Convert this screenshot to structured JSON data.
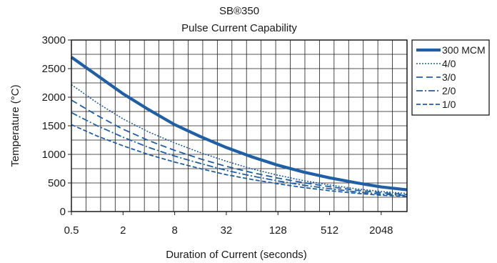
{
  "chart_data": {
    "type": "line",
    "title": "SB®350",
    "subtitle": "Pulse Current Capability",
    "xlabel": "Duration of Current (seconds)",
    "ylabel": "Temperature (°C)",
    "x_scale": "log2",
    "x_ticks": [
      0.5,
      2,
      8,
      32,
      128,
      512,
      2048
    ],
    "xlim": [
      0.5,
      4096
    ],
    "ylim": [
      0,
      3000
    ],
    "y_ticks": [
      0,
      500,
      1000,
      1500,
      2000,
      2500,
      3000
    ],
    "grid": true,
    "legend_position": "right",
    "color": "#1f5fa6",
    "series": [
      {
        "name": "300 MCM",
        "style": "thick",
        "x": [
          0.5,
          1,
          2,
          4,
          8,
          16,
          32,
          64,
          128,
          256,
          512,
          1024,
          2048,
          4096
        ],
        "y": [
          2700,
          2380,
          2060,
          1780,
          1520,
          1310,
          1120,
          955,
          810,
          690,
          590,
          505,
          430,
          380
        ]
      },
      {
        "name": "4/0",
        "style": "dotted",
        "x": [
          0.5,
          1,
          2,
          4,
          8,
          16,
          32,
          64,
          128,
          256,
          512,
          1024,
          2048,
          4096
        ],
        "y": [
          2220,
          1900,
          1620,
          1390,
          1200,
          1030,
          880,
          745,
          635,
          540,
          465,
          400,
          350,
          315
        ]
      },
      {
        "name": "3/0",
        "style": "dashed",
        "x": [
          0.5,
          1,
          2,
          4,
          8,
          16,
          32,
          64,
          128,
          256,
          512,
          1024,
          2048,
          4096
        ],
        "y": [
          1950,
          1680,
          1440,
          1240,
          1070,
          920,
          790,
          680,
          585,
          505,
          435,
          375,
          330,
          295
        ]
      },
      {
        "name": "2/0",
        "style": "dashdot",
        "x": [
          0.5,
          1,
          2,
          4,
          8,
          16,
          32,
          64,
          128,
          256,
          512,
          1024,
          2048,
          4096
        ],
        "y": [
          1730,
          1500,
          1300,
          1120,
          970,
          840,
          720,
          620,
          535,
          460,
          400,
          345,
          305,
          280
        ]
      },
      {
        "name": "1/0",
        "style": "dashed2",
        "x": [
          0.5,
          1,
          2,
          4,
          8,
          16,
          32,
          64,
          128,
          256,
          512,
          1024,
          2048,
          4096
        ],
        "y": [
          1520,
          1320,
          1150,
          995,
          865,
          750,
          645,
          560,
          485,
          420,
          365,
          320,
          285,
          265
        ]
      }
    ]
  }
}
